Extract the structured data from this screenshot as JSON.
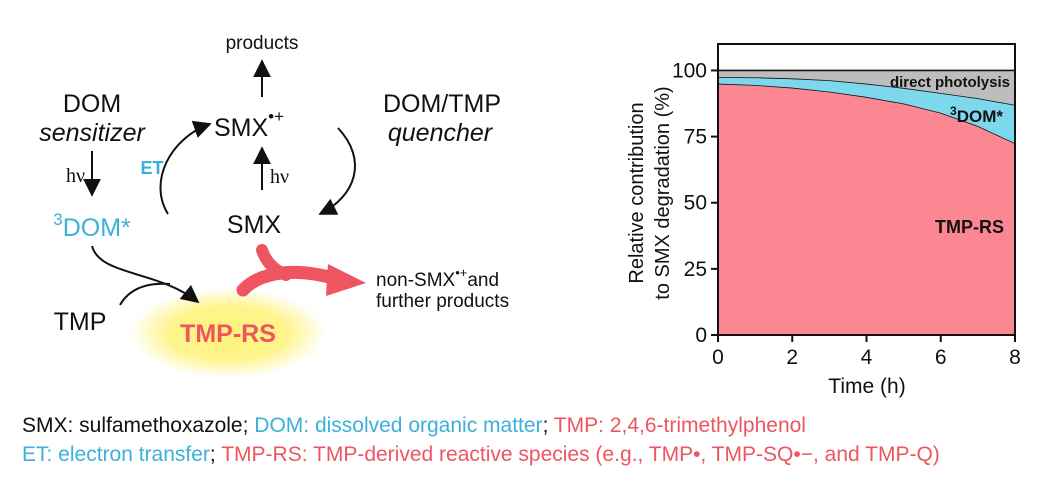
{
  "colors": {
    "black": "#111111",
    "blue": "#3bb0d8",
    "red": "#ee5560",
    "pink_fill": "#fb8792",
    "cyan_fill": "#7dd8ee",
    "gray_fill": "#bdbdbd",
    "glow": "#fff27a"
  },
  "scheme": {
    "products_top": "products",
    "smx_radical_base": "SMX",
    "smx_radical_sup": "•+",
    "smx": "SMX",
    "hv_center": "hν",
    "dom": "DOM",
    "sensitizer": "sensitizer",
    "hv_left": "hν",
    "triplet_sup": "3",
    "triplet_dom": "DOM*",
    "et": "ET",
    "dom_tmp": "DOM/TMP",
    "quencher": "quencher",
    "tmp": "TMP",
    "tmp_rs": "TMP-RS",
    "non_smx_prefix": "non-SMX",
    "non_smx_sup": "•+",
    "non_smx_and": "and",
    "further_products": "further products"
  },
  "legend": {
    "line1": [
      {
        "text": "SMX: sulfamethoxazole; ",
        "color": "black"
      },
      {
        "text": "DOM: dissolved organic matter",
        "color": "blue"
      },
      {
        "text": "; ",
        "color": "black"
      },
      {
        "text": "TMP: 2,4,6-trimethylphenol",
        "color": "red"
      }
    ],
    "line2": [
      {
        "text": "ET: electron transfer",
        "color": "blue"
      },
      {
        "text": "; ",
        "color": "black"
      },
      {
        "text": "TMP-RS: TMP-derived reactive species (e.g., TMP•, TMP-SQ•−, and TMP-Q)",
        "color": "red"
      }
    ]
  },
  "chart_data": {
    "type": "area",
    "title": "",
    "xlabel": "Time (h)",
    "ylabel_line1": "Relative contribution",
    "ylabel_line2": "to SMX degradation (%)",
    "xlim": [
      0,
      8
    ],
    "ylim": [
      0,
      110
    ],
    "xticks": [
      0,
      2,
      4,
      6,
      8
    ],
    "yticks": [
      0,
      25,
      50,
      75,
      100
    ],
    "x": [
      0,
      1,
      2,
      3,
      4,
      5,
      6,
      7,
      8
    ],
    "series": [
      {
        "name": "TMP-RS",
        "fill": "pink_fill",
        "cumulative_top": [
          95,
          94.5,
          93.5,
          92,
          90,
          87.5,
          84,
          79,
          72.5
        ]
      },
      {
        "name": "3DOM*",
        "fill": "cyan_fill",
        "cumulative_top": [
          97.5,
          97.4,
          97,
          96.3,
          95,
          93.4,
          91.5,
          89.5,
          87
        ]
      },
      {
        "name": "direct photolysis",
        "fill": "gray_fill",
        "cumulative_top": [
          100,
          100,
          100,
          100,
          100,
          100,
          100,
          100,
          100
        ]
      }
    ],
    "labels": {
      "tmp_rs": "TMP-RS",
      "dom_sup": "3",
      "dom_base": "DOM*",
      "direct": "direct photolysis"
    }
  }
}
